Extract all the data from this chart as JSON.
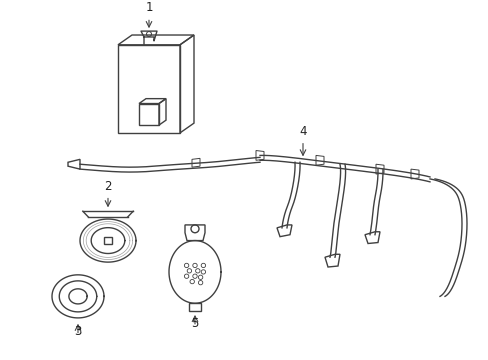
{
  "background_color": "#ffffff",
  "line_color": "#404040",
  "label_color": "#222222",
  "fig_width": 4.89,
  "fig_height": 3.6,
  "dpi": 100,
  "label_fontsize": 8.5
}
